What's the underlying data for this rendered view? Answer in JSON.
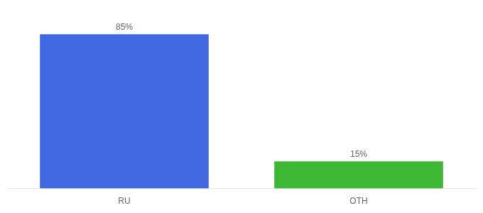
{
  "chart_data": {
    "type": "bar",
    "categories": [
      "RU",
      "OTH"
    ],
    "values": [
      85,
      15
    ],
    "value_labels": [
      "85%",
      "15%"
    ],
    "colors": [
      "#4169E1",
      "#3CB832"
    ],
    "ylim": [
      0,
      100
    ],
    "grid": false,
    "data_labels": true,
    "tick_labels": "x"
  }
}
